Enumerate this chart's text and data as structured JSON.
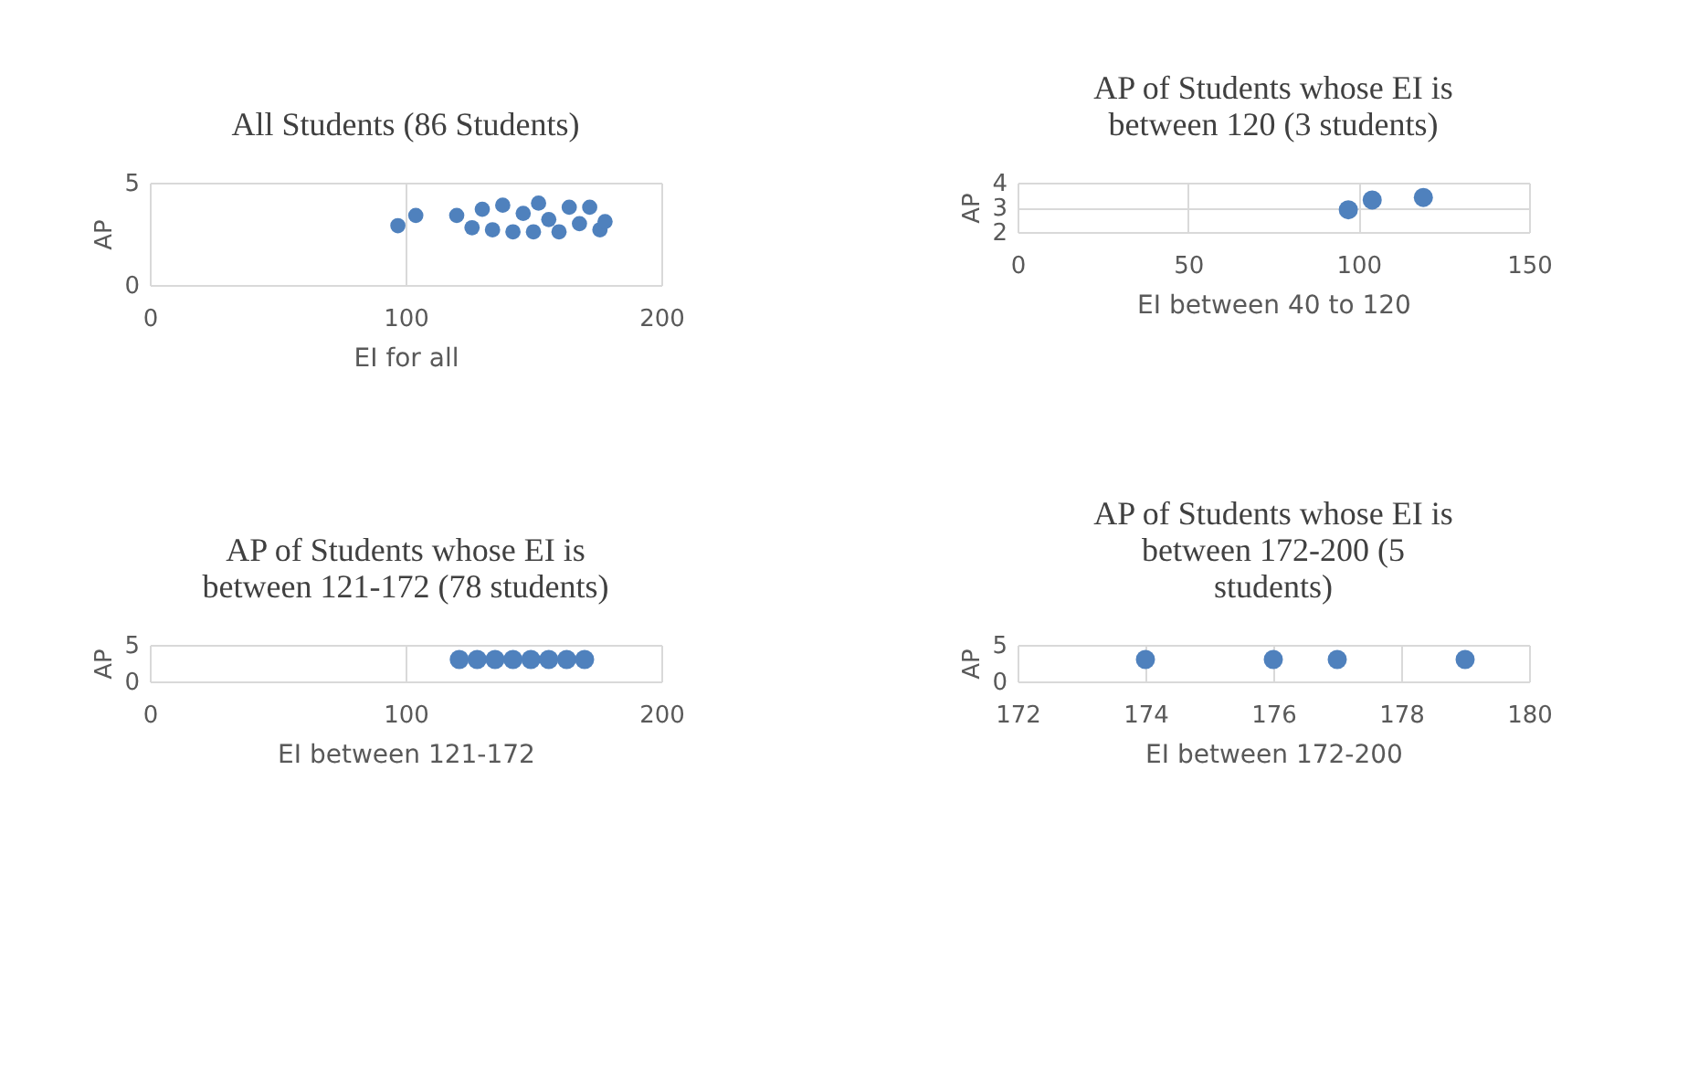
{
  "chart_data": [
    {
      "type": "scatter",
      "title": "All Students (86 Students)",
      "xlabel": "EI for all",
      "ylabel": "AP",
      "xlim": [
        0,
        200
      ],
      "xticks": [
        0,
        100,
        200
      ],
      "ylim": [
        0,
        5
      ],
      "yticks": [
        0,
        5
      ],
      "grid": true,
      "marker": "circle",
      "series": [
        {
          "color": "#4f81bd",
          "x": [
            97,
            104,
            120,
            126,
            130,
            134,
            138,
            142,
            146,
            150,
            152,
            156,
            160,
            164,
            168,
            172,
            176,
            178
          ],
          "values": [
            2.9,
            3.4,
            3.4,
            2.8,
            3.7,
            2.7,
            3.9,
            2.6,
            3.5,
            2.6,
            4.0,
            3.2,
            2.6,
            3.8,
            3.0,
            3.8,
            2.7,
            3.1
          ]
        }
      ]
    },
    {
      "type": "scatter",
      "title": "AP of Students whose EI is between 120 (3 students)",
      "xlabel": "EI between 40 to 120",
      "ylabel": "AP",
      "xlim": [
        0,
        150
      ],
      "xticks": [
        0,
        50,
        100,
        150
      ],
      "ylim": [
        2,
        4
      ],
      "yticks": [
        2,
        3,
        4
      ],
      "grid": true,
      "marker": "circle",
      "series": [
        {
          "color": "#4f81bd",
          "x": [
            97,
            104,
            119
          ],
          "values": [
            2.9,
            3.3,
            3.4
          ]
        }
      ]
    },
    {
      "type": "scatter",
      "title": "AP of Students whose EI is between 121-172 (78 students)",
      "xlabel": "EI between 121-172",
      "ylabel": "AP",
      "xlim": [
        0,
        200
      ],
      "xticks": [
        0,
        100,
        200
      ],
      "ylim": [
        0,
        5
      ],
      "yticks": [
        0,
        5
      ],
      "grid": true,
      "marker": "circle",
      "series": [
        {
          "color": "#4f81bd",
          "x": [
            121,
            128,
            135,
            142,
            149,
            156,
            163,
            170
          ],
          "values": [
            3,
            3,
            3,
            3,
            3,
            3,
            3,
            3
          ]
        }
      ]
    },
    {
      "type": "scatter",
      "title": "AP of Students whose EI is between 172-200 (5 students)",
      "xlabel": "EI between 172-200",
      "ylabel": "AP",
      "xlim": [
        172,
        180
      ],
      "xticks": [
        172,
        174,
        176,
        178,
        180
      ],
      "ylim": [
        0,
        5
      ],
      "yticks": [
        0,
        5
      ],
      "grid": true,
      "marker": "circle",
      "series": [
        {
          "color": "#4f81bd",
          "x": [
            174,
            176,
            177,
            179
          ],
          "values": [
            3,
            3,
            3,
            3
          ]
        }
      ]
    }
  ]
}
